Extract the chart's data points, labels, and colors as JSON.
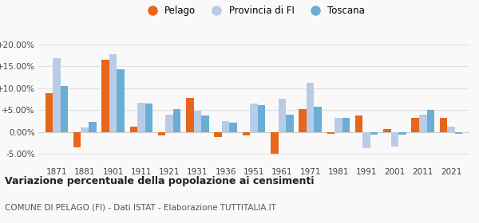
{
  "years": [
    1871,
    1881,
    1901,
    1911,
    1921,
    1931,
    1936,
    1951,
    1961,
    1971,
    1981,
    1991,
    2001,
    2011,
    2021
  ],
  "pelago": [
    8.8,
    -3.5,
    16.5,
    1.2,
    -0.7,
    7.7,
    -1.2,
    -0.7,
    -4.9,
    5.3,
    -0.4,
    3.8,
    0.7,
    3.2,
    3.2
  ],
  "provincia_fi": [
    16.8,
    1.1,
    17.7,
    6.7,
    4.0,
    4.9,
    2.5,
    6.6,
    7.6,
    11.2,
    3.2,
    -3.7,
    -3.3,
    4.0,
    1.3
  ],
  "toscana": [
    10.5,
    2.4,
    14.4,
    6.5,
    5.2,
    3.8,
    2.2,
    6.1,
    3.9,
    5.7,
    3.2,
    -0.6,
    -0.5,
    5.0,
    -0.3
  ],
  "color_pelago": "#e8651a",
  "color_provincia": "#b8cce8",
  "color_toscana": "#6aaed6",
  "title": "Variazione percentuale della popolazione ai censimenti",
  "subtitle": "COMUNE DI PELAGO (FI) - Dati ISTAT - Elaborazione TUTTITALIA.IT",
  "ylim": [
    -7.5,
    23
  ],
  "yticks": [
    -5,
    0,
    5,
    10,
    15,
    20
  ],
  "ytick_labels": [
    "-5.00%",
    "0.00%",
    "+5.00%",
    "+10.00%",
    "+15.00%",
    "+20.00%"
  ],
  "bg_color": "#f9f9f9",
  "grid_color": "#e0e0e0",
  "bar_width": 0.27
}
